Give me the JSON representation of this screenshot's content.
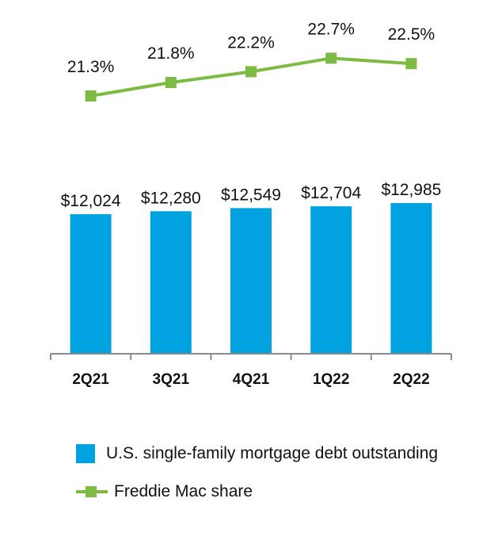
{
  "chart_data": {
    "type": "bar",
    "categories": [
      "2Q21",
      "3Q21",
      "4Q21",
      "1Q22",
      "2Q22"
    ],
    "series": [
      {
        "name": "U.S. single-family mortgage debt outstanding",
        "type": "bar",
        "values": [
          12024,
          12280,
          12549,
          12704,
          12985
        ],
        "labels": [
          "$12,024",
          "$12,280",
          "$12,549",
          "$12,704",
          "$12,985"
        ]
      },
      {
        "name": "Freddie Mac share",
        "type": "line",
        "values": [
          21.3,
          21.8,
          22.2,
          22.7,
          22.5
        ],
        "labels": [
          "21.3%",
          "21.8%",
          "22.2%",
          "22.7%",
          "22.5%"
        ]
      }
    ],
    "colors": {
      "bar": "#00a3e0",
      "line": "#7dbb42"
    }
  }
}
